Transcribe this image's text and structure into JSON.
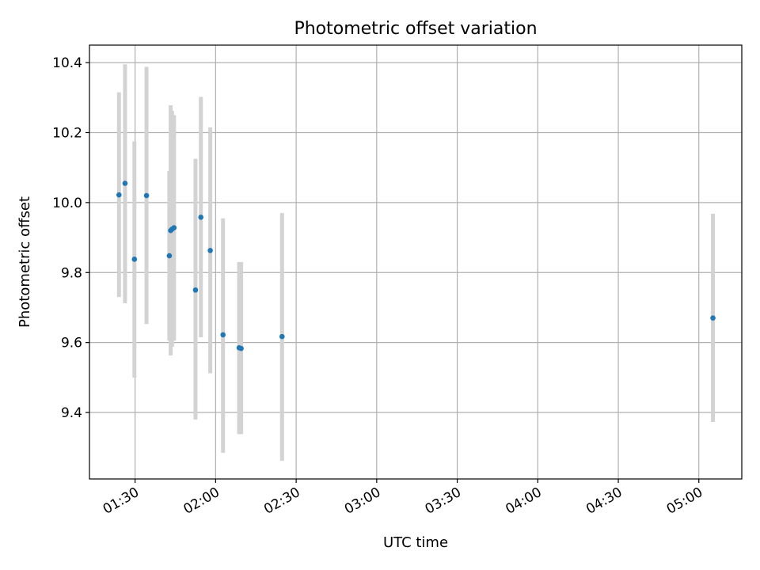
{
  "chart_data": {
    "type": "scatter",
    "title": "Photometric offset variation",
    "xlabel": "UTC time",
    "ylabel": "Photometric offset",
    "xlim": [
      "01:13",
      "05:16"
    ],
    "ylim": [
      9.21,
      10.45
    ],
    "grid": true,
    "x_ticks": [
      "01:30",
      "02:00",
      "02:30",
      "03:00",
      "03:30",
      "04:00",
      "04:30",
      "05:00"
    ],
    "y_ticks": [
      "9.4",
      "9.6",
      "9.8",
      "10.0",
      "10.2",
      "10.4"
    ],
    "marker_color": "#1f77b4",
    "errorbar_color": "#d3d3d3",
    "points": [
      {
        "x": "01:24:00",
        "y": 10.022,
        "low": 9.73,
        "high": 10.315
      },
      {
        "x": "01:26:15",
        "y": 10.055,
        "low": 9.712,
        "high": 10.395
      },
      {
        "x": "01:29:45",
        "y": 9.838,
        "low": 9.5,
        "high": 10.175
      },
      {
        "x": "01:34:15",
        "y": 10.02,
        "low": 9.653,
        "high": 10.388
      },
      {
        "x": "01:42:45",
        "y": 9.848,
        "low": 9.605,
        "high": 10.09
      },
      {
        "x": "01:43:15",
        "y": 9.92,
        "low": 9.563,
        "high": 10.278
      },
      {
        "x": "01:43:45",
        "y": 9.924,
        "low": 9.588,
        "high": 10.262
      },
      {
        "x": "01:44:30",
        "y": 9.928,
        "low": 9.605,
        "high": 10.25
      },
      {
        "x": "01:52:30",
        "y": 9.75,
        "low": 9.38,
        "high": 10.125
      },
      {
        "x": "01:54:30",
        "y": 9.958,
        "low": 9.615,
        "high": 10.302
      },
      {
        "x": "01:58:00",
        "y": 9.863,
        "low": 9.512,
        "high": 10.215
      },
      {
        "x": "02:02:45",
        "y": 9.622,
        "low": 9.285,
        "high": 9.955
      },
      {
        "x": "02:08:45",
        "y": 9.585,
        "low": 9.338,
        "high": 9.83
      },
      {
        "x": "02:09:30",
        "y": 9.583,
        "low": 9.338,
        "high": 9.83
      },
      {
        "x": "02:24:45",
        "y": 9.617,
        "low": 9.262,
        "high": 9.97
      },
      {
        "x": "05:05:15",
        "y": 9.67,
        "low": 9.373,
        "high": 9.968
      }
    ]
  }
}
